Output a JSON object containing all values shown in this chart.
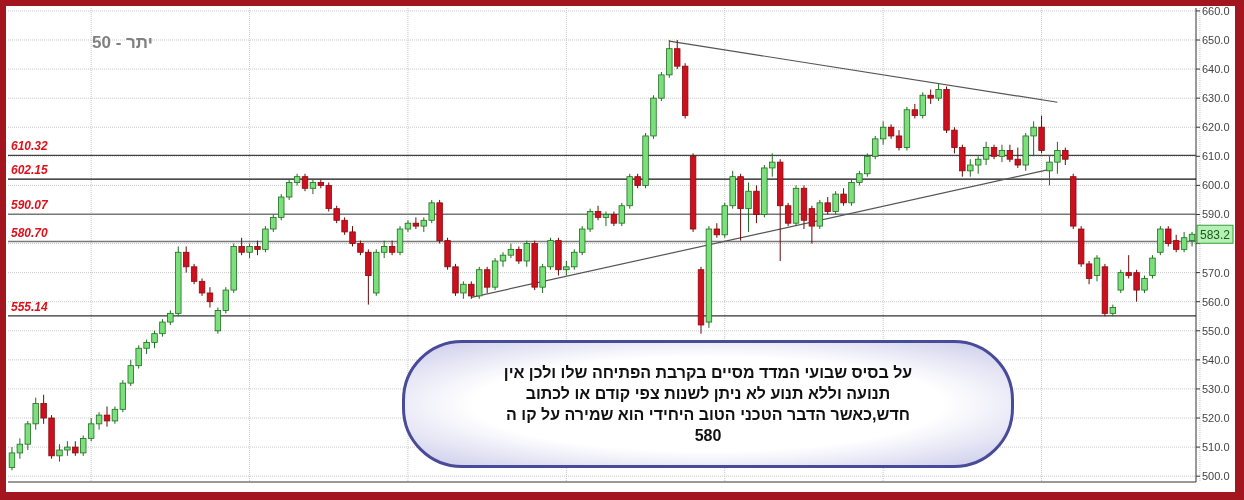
{
  "chart_data": {
    "type": "candlestick",
    "title": "יתר - 50",
    "categories": [
      null,
      null,
      null,
      null,
      null,
      null,
      null,
      null,
      null,
      null,
      null,
      null,
      null,
      null,
      null,
      null,
      null,
      null,
      null,
      null,
      null,
      null,
      null,
      null,
      null,
      null,
      null,
      null,
      null,
      null,
      null,
      null,
      null,
      null,
      null,
      null,
      null,
      null,
      null,
      null,
      null,
      null,
      null,
      null,
      null,
      null,
      null,
      null,
      null,
      null,
      null,
      null,
      null,
      null,
      null,
      null,
      null,
      null,
      null,
      null,
      null,
      null,
      null,
      null,
      null,
      null,
      null,
      null,
      null,
      null,
      null,
      null,
      null,
      null,
      null,
      null,
      null,
      null,
      null,
      null,
      null,
      null,
      null,
      null,
      null,
      null,
      null,
      null,
      null,
      null,
      null,
      null,
      null,
      null,
      null,
      null,
      null,
      null,
      null,
      null,
      null,
      null,
      null,
      null,
      null,
      null,
      null,
      null,
      null,
      null,
      null,
      null,
      null,
      null,
      null,
      null,
      null,
      null,
      null,
      null,
      null,
      null,
      null,
      null,
      null,
      null,
      null,
      null,
      null,
      null,
      null,
      null,
      null,
      null,
      null,
      null,
      null,
      null,
      null,
      null,
      null,
      null,
      null,
      null,
      null,
      null,
      null,
      null,
      null,
      null
    ],
    "ohlc": [
      [
        503,
        510,
        502,
        508
      ],
      [
        508,
        513,
        506,
        511
      ],
      [
        511,
        519,
        509,
        518
      ],
      [
        518,
        527,
        516,
        525
      ],
      [
        525,
        528,
        518,
        520
      ],
      [
        520,
        521,
        506,
        507
      ],
      [
        507,
        511,
        505,
        509
      ],
      [
        509,
        512,
        507,
        510
      ],
      [
        510,
        512,
        507,
        508
      ],
      [
        508,
        514,
        507,
        513
      ],
      [
        513,
        520,
        512,
        518
      ],
      [
        518,
        522,
        516,
        521
      ],
      [
        521,
        524,
        517,
        519
      ],
      [
        519,
        524,
        518,
        523
      ],
      [
        523,
        533,
        522,
        532
      ],
      [
        532,
        540,
        531,
        538
      ],
      [
        538,
        545,
        537,
        544
      ],
      [
        544,
        547,
        542,
        546
      ],
      [
        546,
        550,
        544,
        549
      ],
      [
        549,
        554,
        548,
        553
      ],
      [
        553,
        557,
        552,
        556
      ],
      [
        556,
        579,
        555,
        577
      ],
      [
        577,
        579,
        570,
        572
      ],
      [
        572,
        573,
        566,
        567
      ],
      [
        567,
        568,
        562,
        563
      ],
      [
        563,
        565,
        558,
        560
      ],
      [
        550,
        558,
        549,
        557
      ],
      [
        557,
        565,
        556,
        564
      ],
      [
        564,
        580,
        563,
        579
      ],
      [
        579,
        582,
        576,
        577
      ],
      [
        577,
        580,
        575,
        579
      ],
      [
        579,
        581,
        576,
        578
      ],
      [
        578,
        586,
        577,
        585
      ],
      [
        585,
        590,
        584,
        589
      ],
      [
        589,
        597,
        588,
        596
      ],
      [
        596,
        602,
        595,
        601
      ],
      [
        601,
        604,
        600,
        603
      ],
      [
        603,
        604,
        598,
        599
      ],
      [
        599,
        602,
        597,
        601
      ],
      [
        601,
        602,
        599,
        600
      ],
      [
        600,
        601,
        591,
        592
      ],
      [
        592,
        593,
        587,
        588
      ],
      [
        588,
        589,
        583,
        584
      ],
      [
        584,
        586,
        579,
        580
      ],
      [
        580,
        581,
        576,
        577
      ],
      [
        577,
        578,
        559,
        569
      ],
      [
        563,
        578,
        562,
        577
      ],
      [
        577,
        581,
        575,
        579
      ],
      [
        579,
        581,
        576,
        577
      ],
      [
        577,
        586,
        576,
        585
      ],
      [
        585,
        588,
        584,
        587
      ],
      [
        587,
        589,
        585,
        586
      ],
      [
        586,
        589,
        584,
        588
      ],
      [
        588,
        595,
        587,
        594
      ],
      [
        594,
        595,
        580,
        581
      ],
      [
        581,
        582,
        571,
        572
      ],
      [
        572,
        573,
        562,
        563
      ],
      [
        563,
        567,
        561,
        566
      ],
      [
        566,
        567,
        561,
        562
      ],
      [
        562,
        572,
        561,
        571
      ],
      [
        571,
        572,
        563,
        565
      ],
      [
        565,
        575,
        564,
        574
      ],
      [
        574,
        577,
        572,
        576
      ],
      [
        576,
        580,
        575,
        578
      ],
      [
        578,
        579,
        573,
        574
      ],
      [
        574,
        581,
        572,
        580
      ],
      [
        580,
        581,
        564,
        565
      ],
      [
        565,
        573,
        563,
        572
      ],
      [
        572,
        582,
        571,
        581
      ],
      [
        581,
        582,
        569,
        571
      ],
      [
        571,
        574,
        569,
        572
      ],
      [
        572,
        578,
        571,
        577
      ],
      [
        577,
        586,
        576,
        585
      ],
      [
        585,
        592,
        584,
        591
      ],
      [
        591,
        593,
        588,
        589
      ],
      [
        589,
        591,
        586,
        590
      ],
      [
        590,
        591,
        586,
        587
      ],
      [
        587,
        594,
        586,
        593
      ],
      [
        593,
        604,
        592,
        603
      ],
      [
        603,
        604,
        599,
        600
      ],
      [
        600,
        618,
        599,
        617
      ],
      [
        617,
        631,
        616,
        630
      ],
      [
        630,
        639,
        629,
        638
      ],
      [
        638,
        650,
        637,
        647
      ],
      [
        647,
        650,
        640,
        641
      ],
      [
        641,
        642,
        623,
        624
      ],
      [
        610,
        611,
        584,
        585
      ],
      [
        571,
        572,
        549,
        552
      ],
      [
        553,
        586,
        551,
        585
      ],
      [
        585,
        587,
        582,
        583
      ],
      [
        583,
        594,
        582,
        593
      ],
      [
        593,
        605,
        592,
        603
      ],
      [
        603,
        604,
        581,
        592
      ],
      [
        592,
        601,
        584,
        598
      ],
      [
        598,
        600,
        587,
        590
      ],
      [
        590,
        607,
        589,
        606
      ],
      [
        606,
        611,
        603,
        608
      ],
      [
        608,
        609,
        574,
        593
      ],
      [
        593,
        594,
        586,
        587
      ],
      [
        587,
        600,
        586,
        599
      ],
      [
        599,
        600,
        585,
        588
      ],
      [
        592,
        593,
        580,
        586
      ],
      [
        586,
        595,
        585,
        594
      ],
      [
        594,
        596,
        590,
        591
      ],
      [
        591,
        598,
        590,
        597
      ],
      [
        597,
        599,
        593,
        594
      ],
      [
        594,
        602,
        593,
        601
      ],
      [
        601,
        605,
        600,
        604
      ],
      [
        604,
        611,
        603,
        610
      ],
      [
        610,
        617,
        609,
        616
      ],
      [
        616,
        622,
        614,
        620
      ],
      [
        620,
        621,
        616,
        617
      ],
      [
        617,
        619,
        612,
        613
      ],
      [
        613,
        627,
        612,
        626
      ],
      [
        626,
        628,
        623,
        624
      ],
      [
        624,
        632,
        623,
        631
      ],
      [
        631,
        633,
        628,
        630
      ],
      [
        630,
        635,
        629,
        633
      ],
      [
        633,
        634,
        618,
        619
      ],
      [
        619,
        620,
        611,
        613
      ],
      [
        613,
        614,
        603,
        605
      ],
      [
        605,
        609,
        603,
        607
      ],
      [
        607,
        610,
        604,
        609
      ],
      [
        609,
        615,
        607,
        613
      ],
      [
        613,
        614,
        609,
        610
      ],
      [
        610,
        614,
        608,
        612
      ],
      [
        612,
        614,
        608,
        609
      ],
      [
        609,
        613,
        606,
        607
      ],
      [
        607,
        618,
        605,
        617
      ],
      [
        617,
        622,
        610,
        620
      ],
      [
        620,
        624,
        611,
        612
      ],
      [
        605,
        610,
        600,
        608
      ],
      [
        608,
        615,
        604,
        612
      ],
      [
        612,
        613,
        607,
        609
      ],
      [
        603,
        604,
        585,
        586
      ],
      [
        585,
        586,
        572,
        573
      ],
      [
        573,
        574,
        566,
        568
      ],
      [
        569,
        576,
        567,
        575
      ],
      [
        572,
        573,
        555,
        556
      ],
      [
        556,
        559,
        555,
        558
      ],
      [
        564,
        571,
        563,
        570
      ],
      [
        570,
        576,
        568,
        569
      ],
      [
        570,
        571,
        560,
        564
      ],
      [
        564,
        569,
        563,
        568
      ],
      [
        569,
        576,
        568,
        575
      ],
      [
        577,
        586,
        576,
        585
      ],
      [
        585,
        586,
        579,
        580
      ],
      [
        581,
        583,
        577,
        578
      ],
      [
        578,
        584,
        577,
        582
      ],
      [
        581,
        584,
        579,
        583.2
      ]
    ],
    "series": [
      {
        "type": "line",
        "color": "#555555",
        "values": [
          null,
          null,
          null,
          null,
          null,
          null,
          null,
          null,
          null,
          null,
          null,
          null,
          null,
          null,
          null,
          null,
          null,
          null,
          null,
          null,
          null,
          null,
          null,
          null,
          null,
          null,
          null,
          null,
          null,
          null,
          null,
          null,
          null,
          null,
          null,
          null,
          null,
          null,
          null,
          null,
          null,
          null,
          null,
          null,
          null,
          null,
          null,
          null,
          null,
          null,
          null,
          null,
          null,
          null,
          null,
          null,
          null,
          null,
          null,
          null,
          null,
          null,
          null,
          null,
          null,
          null,
          null,
          null,
          null,
          null,
          null,
          null,
          null,
          null,
          null,
          null,
          null,
          null,
          null,
          null,
          null,
          null,
          null,
          649.6,
          null,
          null,
          null,
          null,
          null,
          null,
          null,
          null,
          null,
          null,
          null,
          null,
          null,
          null,
          null,
          null,
          null,
          null,
          null,
          null,
          null,
          null,
          null,
          null,
          null,
          null,
          null,
          null,
          null,
          null,
          null,
          null,
          null,
          null,
          null,
          null,
          null,
          null,
          null,
          null,
          null,
          null,
          null,
          null,
          null,
          null,
          null,
          null,
          628.6,
          null,
          null,
          null,
          null,
          null,
          null,
          null,
          null,
          null,
          null,
          null,
          null,
          null,
          null,
          null,
          null,
          null
        ]
      },
      {
        "type": "line",
        "color": "#555555",
        "values": [
          null,
          null,
          null,
          null,
          null,
          null,
          null,
          null,
          null,
          null,
          null,
          null,
          null,
          null,
          null,
          null,
          null,
          null,
          null,
          null,
          null,
          null,
          null,
          null,
          null,
          null,
          null,
          null,
          null,
          null,
          null,
          null,
          null,
          null,
          null,
          null,
          null,
          null,
          null,
          null,
          null,
          null,
          null,
          null,
          null,
          null,
          null,
          null,
          null,
          null,
          null,
          null,
          null,
          null,
          null,
          null,
          null,
          null,
          561.5,
          null,
          null,
          null,
          null,
          null,
          null,
          null,
          null,
          null,
          null,
          null,
          null,
          null,
          null,
          null,
          null,
          null,
          null,
          null,
          null,
          null,
          null,
          null,
          null,
          null,
          null,
          null,
          null,
          null,
          null,
          null,
          null,
          null,
          null,
          null,
          null,
          null,
          null,
          null,
          null,
          null,
          null,
          null,
          null,
          null,
          null,
          null,
          null,
          null,
          null,
          null,
          null,
          null,
          null,
          null,
          null,
          null,
          null,
          null,
          null,
          null,
          null,
          null,
          null,
          null,
          null,
          null,
          null,
          null,
          null,
          null,
          null,
          605.5,
          null,
          null,
          null,
          null,
          null,
          null,
          null,
          null,
          null,
          null,
          null,
          null,
          null,
          null,
          null,
          null,
          null,
          null
        ]
      }
    ],
    "ylim": [
      498,
      661
    ],
    "yticks": [
      {
        "value": 500,
        "label": "500.0"
      },
      {
        "value": 510,
        "label": "510.0"
      },
      {
        "value": 520,
        "label": "520.0"
      },
      {
        "value": 530,
        "label": "530.0"
      },
      {
        "value": 540,
        "label": "540.0"
      },
      {
        "value": 550,
        "label": "550.0"
      },
      {
        "value": 560,
        "label": "560.0"
      },
      {
        "value": 570,
        "label": "570.0"
      },
      {
        "value": 580,
        "label": null
      },
      {
        "value": 590,
        "label": "590.0"
      },
      {
        "value": 600,
        "label": "600.0"
      },
      {
        "value": 610,
        "label": "610.0"
      },
      {
        "value": 620,
        "label": "620.0"
      },
      {
        "value": 630,
        "label": "630.0"
      },
      {
        "value": 640,
        "label": "640.0"
      },
      {
        "value": 650,
        "label": "650.0"
      },
      {
        "value": 660,
        "label": "660.0"
      }
    ],
    "ref_lines": [
      {
        "axis": "y",
        "value": 610.32,
        "label": "610.32",
        "color": "#444444"
      },
      {
        "axis": "y",
        "value": 602.15,
        "label": "602.15",
        "color": "#111111"
      },
      {
        "axis": "y",
        "value": 590.07,
        "label": "590.07",
        "color": "#777777"
      },
      {
        "axis": "y",
        "value": 580.7,
        "label": "580.70",
        "color": "#777777"
      },
      {
        "axis": "y",
        "value": 555.14,
        "label": "555.14",
        "color": "#333333"
      }
    ],
    "annotations": [
      "583.2",
      "על בסיס שבועי המדד מסיים בקרבת הפתיחה שלו ולכן אין\nתנועה וללא תנוע לא ניתן לשנות צפי קודם או לכתוב\nחדש,כאשר הדבר הטכני הטוב היחידי הוא שמירה על קו ה\n580"
    ],
    "grid": true
  }
}
